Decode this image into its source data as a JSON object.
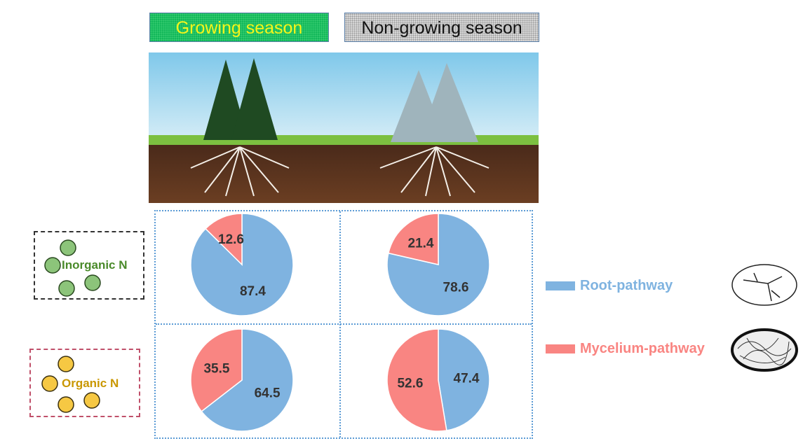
{
  "seasons": {
    "growing": "Growing season",
    "non_growing": "Non-growing season"
  },
  "nitrogen": {
    "inorganic": "Inorganic N",
    "organic": "Organic N"
  },
  "legend": {
    "root": "Root-pathway",
    "mycelium": "Mycelium-pathway"
  },
  "colors": {
    "root": "#7fb3e0",
    "mycelium": "#f98582",
    "inorganic": "#4a8a2a",
    "organic": "#c99700"
  },
  "chart_data": {
    "type": "pie",
    "series_names": [
      "Root-pathway",
      "Mycelium-pathway"
    ],
    "charts": [
      {
        "season": "Growing season",
        "nitrogen": "Inorganic N",
        "root": 87.4,
        "mycelium": 12.6
      },
      {
        "season": "Non-growing season",
        "nitrogen": "Inorganic N",
        "root": 78.6,
        "mycelium": 21.4
      },
      {
        "season": "Growing season",
        "nitrogen": "Organic N",
        "root": 64.5,
        "mycelium": 35.5
      },
      {
        "season": "Non-growing season",
        "nitrogen": "Organic N",
        "root": 47.4,
        "mycelium": 52.6
      }
    ]
  }
}
